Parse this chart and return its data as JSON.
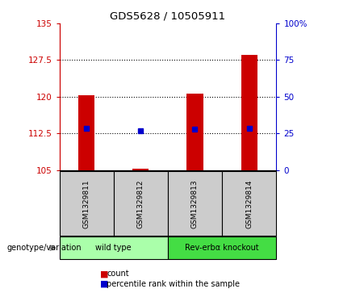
{
  "title": "GDS5628 / 10505911",
  "samples": [
    "GSM1329811",
    "GSM1329812",
    "GSM1329813",
    "GSM1329814"
  ],
  "bar_bottoms": [
    105,
    105,
    105,
    105
  ],
  "bar_tops": [
    120.3,
    105.3,
    120.6,
    128.5
  ],
  "blue_dot_values": [
    113.5,
    113.1,
    113.3,
    113.6
  ],
  "ylim": [
    105,
    135
  ],
  "yticks_left": [
    105,
    112.5,
    120,
    127.5,
    135
  ],
  "yticks_right": [
    0,
    25,
    50,
    75,
    100
  ],
  "ytick_labels_left": [
    "105",
    "112.5",
    "120",
    "127.5",
    "135"
  ],
  "ytick_labels_right": [
    "0",
    "25",
    "50",
    "75",
    "100%"
  ],
  "left_color": "#cc0000",
  "right_color": "#0000cc",
  "bar_color": "#cc0000",
  "blue_dot_color": "#0000cc",
  "groups": [
    {
      "label": "wild type",
      "samples": [
        0,
        1
      ],
      "color": "#aaffaa"
    },
    {
      "label": "Rev-erbα knockout",
      "samples": [
        2,
        3
      ],
      "color": "#44dd44"
    }
  ],
  "genotype_label": "genotype/variation",
  "legend_count_label": "count",
  "legend_pct_label": "percentile rank within the sample",
  "bar_width": 0.3,
  "sample_box_color": "#cccccc",
  "group_box_light": "#aaffaa",
  "group_box_dark": "#44dd44"
}
